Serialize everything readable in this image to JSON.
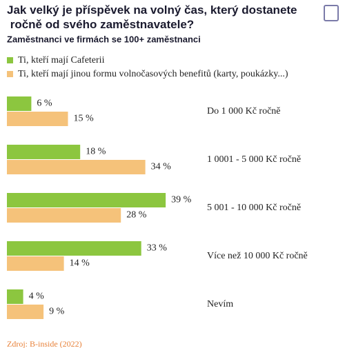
{
  "chart_data": {
    "type": "bar",
    "orientation": "horizontal",
    "title": "Jak velký je příspěvek na volný čas, který dostanete ročně od svého zaměstnavatele?",
    "subtitle": "Zaměstnanci ve firmách se 100+ zaměstnanci",
    "categories": [
      "Do 1 000 Kč ročně",
      "1 0001 - 5 000 Kč ročně",
      "5 001 - 10 000 Kč ročně",
      "Více než 10 000 Kč ročně",
      "Nevím"
    ],
    "series": [
      {
        "name": "Ti, kteří mají Cafeterii",
        "color": "#8cc63f",
        "values": [
          6,
          18,
          39,
          33,
          4
        ],
        "value_labels": [
          "6 %",
          "18 %",
          "39 %",
          "33 %",
          "4 %"
        ]
      },
      {
        "name": "Ti, kteří mají jinou formu volnočasových benefitů (karty, poukázky...)",
        "color": "#f5c27a",
        "values": [
          15,
          34,
          28,
          14,
          9
        ],
        "value_labels": [
          "15 %",
          "34 %",
          "28 %",
          "14 %",
          "9 %"
        ]
      }
    ],
    "source": "Zdroj: B-inside (2022)"
  }
}
